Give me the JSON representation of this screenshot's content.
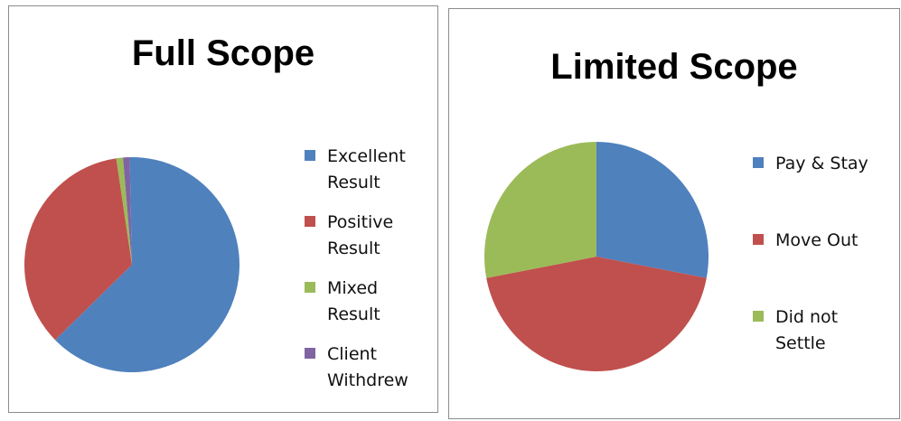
{
  "chart_data": [
    {
      "type": "pie",
      "title": "Full Scope",
      "legend_position": "right",
      "slices": [
        {
          "label": "Excellent Result",
          "value": 63,
          "color": "#4f81bd"
        },
        {
          "label": "Positive Result",
          "value": 35,
          "color": "#c0504d"
        },
        {
          "label": "Mixed Result",
          "value": 1,
          "color": "#9bbb59"
        },
        {
          "label": "Client Withdrew",
          "value": 1,
          "color": "#8064a2"
        }
      ]
    },
    {
      "type": "pie",
      "title": "Limited Scope",
      "legend_position": "right",
      "slices": [
        {
          "label": "Pay & Stay",
          "value": 28,
          "color": "#4f81bd"
        },
        {
          "label": "Move Out",
          "value": 44,
          "color": "#c0504d"
        },
        {
          "label": "Did not Settle",
          "value": 28,
          "color": "#9bbb59"
        }
      ]
    }
  ]
}
